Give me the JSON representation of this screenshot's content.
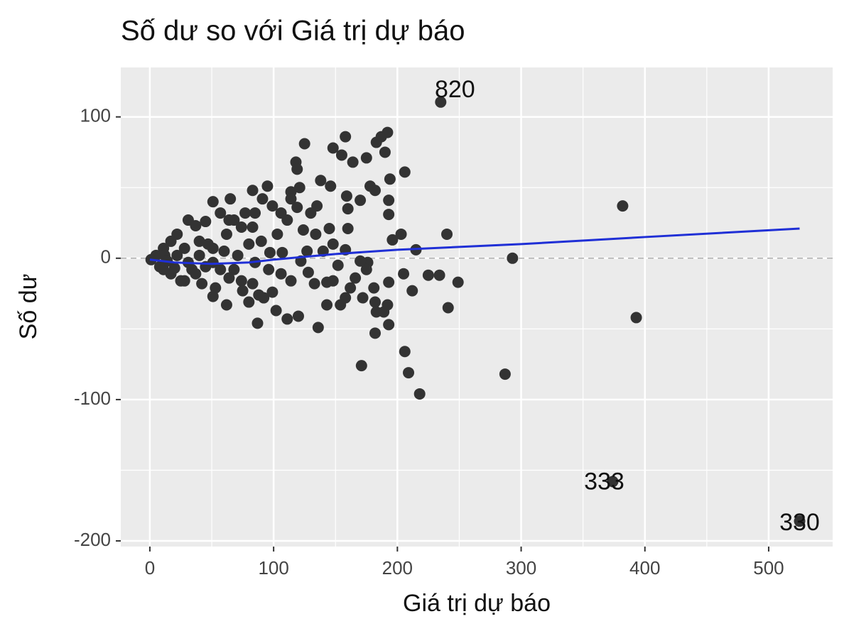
{
  "chart_data": {
    "type": "scatter",
    "title": "Số dư so với Giá trị dự báo",
    "x_label": "Giá trị dự báo",
    "y_label": "Số dư",
    "xlim": [
      -23.5,
      551.7
    ],
    "ylim": [
      -204,
      135
    ],
    "xticks": [
      0,
      100,
      200,
      300,
      400,
      500
    ],
    "yticks": [
      -200,
      -100,
      0,
      100
    ],
    "grid": true,
    "hline": 0,
    "points": {
      "color": "#333333",
      "x": [
        235,
        374,
        525,
        382,
        393,
        293,
        287,
        218,
        206,
        209,
        171,
        206,
        203,
        240,
        241,
        249,
        215,
        212,
        205,
        225,
        234,
        182,
        158,
        192,
        187,
        190,
        183,
        175,
        164,
        148,
        155,
        194,
        193,
        193,
        178,
        182,
        159,
        160,
        146,
        138,
        125,
        118,
        119,
        170,
        160,
        145,
        196,
        193,
        192,
        193,
        183,
        182,
        176,
        175,
        170,
        158,
        152,
        158,
        154,
        143,
        162,
        143,
        136,
        133,
        128,
        120,
        111,
        102,
        87,
        122,
        127,
        124,
        119,
        111,
        106,
        114,
        130,
        95,
        83,
        91,
        99,
        135,
        103,
        107,
        90,
        96,
        83,
        88,
        80,
        74,
        68,
        62,
        53,
        51,
        42,
        34,
        28,
        65,
        51,
        57,
        45,
        37,
        31,
        22,
        17,
        11,
        5,
        1,
        8,
        17,
        25,
        20,
        40,
        51,
        62,
        74,
        77,
        68,
        80,
        51,
        40,
        28,
        60,
        45,
        31,
        37,
        57,
        71,
        85,
        97,
        106,
        114,
        11,
        12,
        22,
        64,
        85,
        83,
        47,
        14,
        92,
        75,
        64,
        99,
        121,
        114,
        134,
        140,
        148,
        148,
        166,
        172,
        181,
        189
      ],
      "y": [
        110.5,
        -158,
        -186,
        37,
        -42,
        0,
        -82,
        -96,
        -66,
        -81,
        -76,
        61,
        17,
        17,
        -35,
        -17,
        6,
        -23,
        -11,
        -12,
        -12,
        -53,
        86,
        89,
        86,
        75,
        82,
        71,
        68,
        78,
        73,
        56,
        41,
        31,
        51,
        48,
        44,
        35,
        51,
        55,
        81,
        68,
        63,
        41,
        21,
        21,
        13,
        -17,
        -33,
        -47,
        -38,
        -31,
        -3,
        -8,
        -2,
        6,
        -5,
        -28,
        -33,
        -33,
        -21,
        -17,
        -49,
        -18,
        -10,
        -41,
        -43,
        -37,
        -46,
        -2,
        5,
        20,
        36,
        27,
        32,
        47,
        32,
        51,
        48,
        42,
        37,
        37,
        17,
        4,
        12,
        -8,
        -18,
        -26,
        -31,
        -16,
        -8,
        -33,
        -21,
        -27,
        -18,
        -8,
        -16,
        42,
        40,
        32,
        26,
        23,
        27,
        17,
        12,
        7,
        2,
        -1,
        -6,
        -11,
        -16,
        -7,
        12,
        7,
        17,
        22,
        32,
        27,
        10,
        -3,
        2,
        7,
        5,
        -6,
        -3,
        -11,
        -8,
        2,
        -3,
        4,
        -11,
        -16,
        -8,
        2,
        2,
        27,
        32,
        22,
        10,
        -2,
        -28,
        -23,
        -14,
        -24,
        50,
        42,
        17,
        5,
        10,
        -16,
        -14,
        -28,
        -21,
        -38
      ]
    },
    "smooth": {
      "color": "#1f2fd6",
      "x": [
        0,
        20,
        50,
        80,
        100,
        150,
        200,
        300,
        400,
        525
      ],
      "y": [
        -1,
        -3,
        -4,
        -3,
        -1,
        3,
        6,
        10,
        15,
        21
      ]
    },
    "annotations": [
      {
        "text": "820",
        "x": 235,
        "y": 110.5
      },
      {
        "text": "333",
        "x": 374,
        "y": -158
      },
      {
        "text": "330",
        "x": 525,
        "y": -186
      }
    ]
  }
}
